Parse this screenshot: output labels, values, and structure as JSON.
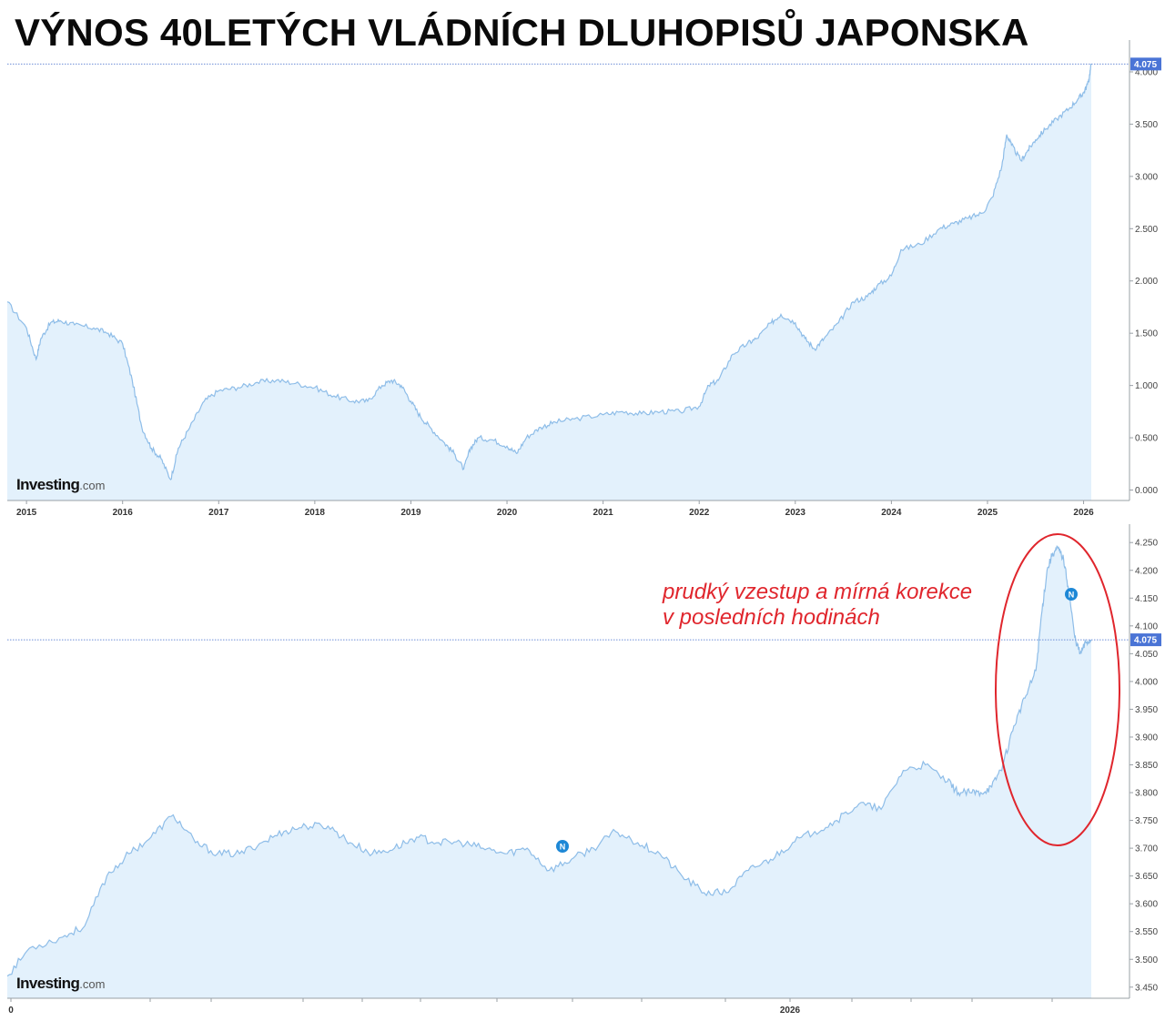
{
  "title": "VÝNOS 40LETÝCH VLÁDNÍCH DLUHOPISŮ JAPONSKA",
  "colors": {
    "line": "#8ebde8",
    "fill": "#e3f1fc",
    "price_line": "#6e8fd8",
    "price_tag": "#4a74d6",
    "annotation": "#e0262d",
    "axis": "#9aa0a6"
  },
  "chart_data": [
    {
      "type": "area",
      "watermark": {
        "strong": "Investing",
        "light": ".com"
      },
      "x": [
        2014.8,
        2015.0,
        2015.1,
        2015.15,
        2015.25,
        2015.35,
        2015.5,
        2015.7,
        2015.85,
        2016.0,
        2016.1,
        2016.2,
        2016.3,
        2016.4,
        2016.5,
        2016.58,
        2016.7,
        2016.85,
        2017.0,
        2017.2,
        2017.4,
        2017.6,
        2017.8,
        2018.0,
        2018.2,
        2018.4,
        2018.55,
        2018.7,
        2018.8,
        2018.9,
        2019.0,
        2019.1,
        2019.2,
        2019.35,
        2019.45,
        2019.55,
        2019.62,
        2019.7,
        2019.85,
        2020.0,
        2020.1,
        2020.2,
        2020.35,
        2020.5,
        2020.7,
        2021.0,
        2021.2,
        2021.4,
        2021.6,
        2021.8,
        2022.0,
        2022.1,
        2022.2,
        2022.35,
        2022.5,
        2022.6,
        2022.75,
        2022.85,
        2023.0,
        2023.1,
        2023.2,
        2023.3,
        2023.45,
        2023.6,
        2023.75,
        2023.85,
        2024.0,
        2024.1,
        2024.3,
        2024.5,
        2024.65,
        2024.8,
        2024.95,
        2025.05,
        2025.15,
        2025.2,
        2025.25,
        2025.35,
        2025.42,
        2025.5,
        2025.6,
        2025.72,
        2025.85,
        2025.95,
        2026.0,
        2026.05,
        2026.08
      ],
      "y": [
        1.8,
        1.55,
        1.25,
        1.45,
        1.6,
        1.62,
        1.58,
        1.55,
        1.5,
        1.4,
        1.05,
        0.6,
        0.4,
        0.3,
        0.1,
        0.4,
        0.6,
        0.85,
        0.95,
        0.98,
        1.03,
        1.05,
        1.02,
        0.98,
        0.9,
        0.85,
        0.85,
        1.0,
        1.05,
        1.0,
        0.85,
        0.7,
        0.6,
        0.45,
        0.35,
        0.2,
        0.4,
        0.5,
        0.48,
        0.42,
        0.35,
        0.5,
        0.6,
        0.65,
        0.68,
        0.72,
        0.75,
        0.73,
        0.75,
        0.75,
        0.8,
        1.0,
        1.05,
        1.3,
        1.4,
        1.45,
        1.6,
        1.68,
        1.6,
        1.45,
        1.35,
        1.45,
        1.6,
        1.8,
        1.85,
        1.95,
        2.05,
        2.3,
        2.35,
        2.5,
        2.55,
        2.6,
        2.65,
        2.8,
        3.1,
        3.4,
        3.3,
        3.15,
        3.25,
        3.35,
        3.45,
        3.55,
        3.65,
        3.75,
        3.8,
        3.9,
        4.075
      ],
      "ylim": [
        -0.1,
        4.2
      ],
      "yticks": [
        "0.000",
        "0.500",
        "1.000",
        "1.500",
        "2.000",
        "2.500",
        "3.000",
        "3.500",
        "4.000"
      ],
      "xticks": [
        "2015",
        "2016",
        "2017",
        "2018",
        "2019",
        "2020",
        "2021",
        "2022",
        "2023",
        "2024",
        "2025",
        "2026"
      ],
      "last_price": "4.075"
    },
    {
      "type": "area",
      "watermark": {
        "strong": "Investing",
        "light": ".com"
      },
      "x": [
        0.0,
        0.02,
        0.05,
        0.07,
        0.09,
        0.11,
        0.13,
        0.15,
        0.17,
        0.19,
        0.21,
        0.23,
        0.25,
        0.27,
        0.29,
        0.31,
        0.33,
        0.35,
        0.37,
        0.39,
        0.41,
        0.43,
        0.45,
        0.47,
        0.49,
        0.51,
        0.53,
        0.55,
        0.57,
        0.59,
        0.61,
        0.63,
        0.65,
        0.67,
        0.69,
        0.71,
        0.73,
        0.75,
        0.77,
        0.79,
        0.81,
        0.83,
        0.85,
        0.86,
        0.87,
        0.88,
        0.89,
        0.9,
        0.91,
        0.92,
        0.93,
        0.935,
        0.94,
        0.945,
        0.95,
        0.955,
        0.96,
        0.965,
        0.97,
        0.975,
        0.98
      ],
      "y": [
        3.47,
        3.52,
        3.54,
        3.56,
        3.65,
        3.69,
        3.72,
        3.76,
        3.71,
        3.69,
        3.69,
        3.71,
        3.73,
        3.74,
        3.74,
        3.71,
        3.69,
        3.7,
        3.72,
        3.71,
        3.71,
        3.7,
        3.69,
        3.7,
        3.66,
        3.68,
        3.7,
        3.73,
        3.71,
        3.69,
        3.65,
        3.62,
        3.62,
        3.66,
        3.68,
        3.71,
        3.73,
        3.75,
        3.78,
        3.77,
        3.84,
        3.85,
        3.82,
        3.8,
        3.8,
        3.8,
        3.81,
        3.85,
        3.92,
        3.97,
        4.02,
        4.12,
        4.2,
        4.23,
        4.24,
        4.22,
        4.16,
        4.08,
        4.05,
        4.07,
        4.075
      ],
      "ylim": [
        3.43,
        4.27
      ],
      "yticks": [
        "3.450",
        "3.500",
        "3.550",
        "3.600",
        "3.650",
        "3.700",
        "3.750",
        "3.800",
        "3.850",
        "3.900",
        "3.950",
        "4.000",
        "4.050",
        "4.100",
        "4.150",
        "4.200",
        "4.250"
      ],
      "xticks": [
        "0",
        "2026"
      ],
      "last_price": "4.075",
      "news_markers": [
        "N",
        "N"
      ],
      "annotation": {
        "line1": "prudký vzestup a mírná korekce",
        "line2": "v posledních hodinách"
      }
    }
  ]
}
